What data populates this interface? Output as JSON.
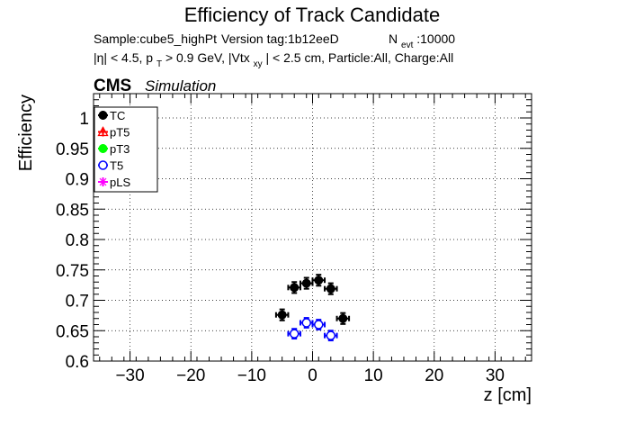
{
  "chart_data": {
    "type": "scatter",
    "title": "Efficiency of Track Candidate",
    "subtitle_line1": {
      "sample": "Sample:cube5_highPt",
      "version": "Version tag:1b12eeD",
      "nevt_prefix": "N",
      "nevt_sub": "evt",
      "nevt_value": ":10000"
    },
    "subtitle_line2": {
      "eta": "|η| < 4.5, p",
      "pt_sub": "T",
      "pt_rest": " > 0.9 GeV, |Vtx",
      "vtx_sub": "xy",
      "vtx_rest": "| < 2.5 cm, Particle:All, Charge:All"
    },
    "cms_label": "CMS",
    "simulation_label": "Simulation",
    "xlabel": "z [cm]",
    "ylabel": "Efficiency",
    "xlim": [
      -36,
      36
    ],
    "ylim": [
      0.6,
      1.04
    ],
    "x_ticks": [
      -30,
      -20,
      -10,
      0,
      10,
      20,
      30
    ],
    "x_tick_labels": [
      "−30",
      "−20",
      "−10",
      "0",
      "10",
      "20",
      "30"
    ],
    "y_ticks": [
      0.6,
      0.65,
      0.7,
      0.75,
      0.8,
      0.85,
      0.9,
      0.95,
      1
    ],
    "y_tick_labels": [
      "0.6",
      "0.65",
      "0.7",
      "0.75",
      "0.8",
      "0.85",
      "0.9",
      "0.95",
      "1"
    ],
    "legend_position": "top-left",
    "series": [
      {
        "name": "TC",
        "color": "#000000",
        "marker": "filled-circle",
        "x": [
          -5,
          -3,
          -1,
          1,
          3,
          5
        ],
        "y": [
          0.676,
          0.721,
          0.728,
          0.733,
          0.719,
          0.67
        ],
        "xerr": 1,
        "yerr": 0.009
      },
      {
        "name": "pT5",
        "color": "#ff0000",
        "marker": "open-triangle",
        "x": [],
        "y": []
      },
      {
        "name": "pT3",
        "color": "#00ff00",
        "marker": "filled-circle",
        "x": [],
        "y": []
      },
      {
        "name": "T5",
        "color": "#0000ff",
        "marker": "open-circle",
        "x": [
          -3,
          -1,
          1,
          3
        ],
        "y": [
          0.645,
          0.663,
          0.66,
          0.642
        ],
        "xerr": 1,
        "yerr": 0.008
      },
      {
        "name": "pLS",
        "color": "#ff00ff",
        "marker": "open-star",
        "x": [],
        "y": []
      }
    ]
  }
}
